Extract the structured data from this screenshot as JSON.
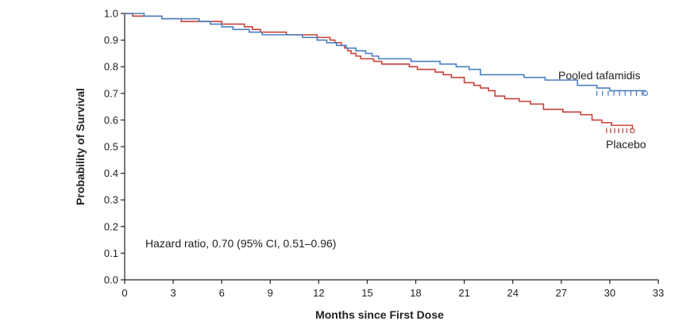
{
  "chart_data": {
    "type": "line",
    "step": true,
    "xlabel": "Months since First Dose",
    "ylabel": "Probability of Survival",
    "xlim": [
      0,
      33
    ],
    "ylim": [
      0.0,
      1.0
    ],
    "x_ticks": [
      "0",
      "3",
      "6",
      "9",
      "12",
      "15",
      "18",
      "21",
      "24",
      "27",
      "30",
      "33"
    ],
    "y_ticks": [
      "0.0",
      "0.1",
      "0.2",
      "0.3",
      "0.4",
      "0.5",
      "0.6",
      "0.7",
      "0.8",
      "0.9",
      "1.0"
    ],
    "grid": false,
    "annotation": "Hazard ratio, 0.70 (95% CI, 0.51–0.96)",
    "series": [
      {
        "name": "Pooled tafamidis",
        "color": "#4a7fc1",
        "x": [
          0,
          1.2,
          2.3,
          4.6,
          5.3,
          6.0,
          6.7,
          7.7,
          8.5,
          9.5,
          11.0,
          11.9,
          12.5,
          13.1,
          13.7,
          14.3,
          14.9,
          15.3,
          15.7,
          17.7,
          19.5,
          20.5,
          21.3,
          22.0,
          24.7,
          26.0,
          28.0,
          29.2,
          30.0,
          32.2
        ],
        "y": [
          1.0,
          0.99,
          0.98,
          0.97,
          0.96,
          0.95,
          0.94,
          0.93,
          0.92,
          0.92,
          0.91,
          0.9,
          0.89,
          0.88,
          0.87,
          0.86,
          0.85,
          0.84,
          0.83,
          0.82,
          0.81,
          0.8,
          0.79,
          0.77,
          0.76,
          0.75,
          0.73,
          0.72,
          0.71,
          0.7
        ]
      },
      {
        "name": "Placebo",
        "color": "#c8413a",
        "x": [
          0,
          0.5,
          2.3,
          3.5,
          5.4,
          6.0,
          7.4,
          7.9,
          8.4,
          10.0,
          11.9,
          12.7,
          13.0,
          13.4,
          13.6,
          13.8,
          14.0,
          14.3,
          14.6,
          15.0,
          15.4,
          15.9,
          16.8,
          17.6,
          18.1,
          19.2,
          19.7,
          20.2,
          21.0,
          21.6,
          22.0,
          22.5,
          22.9,
          23.5,
          24.4,
          25.1,
          25.9,
          27.1,
          28.2,
          28.9,
          29.5,
          30.1,
          31.4
        ],
        "y": [
          1.0,
          0.99,
          0.98,
          0.97,
          0.97,
          0.96,
          0.95,
          0.94,
          0.93,
          0.92,
          0.91,
          0.9,
          0.89,
          0.88,
          0.87,
          0.86,
          0.85,
          0.84,
          0.83,
          0.83,
          0.82,
          0.81,
          0.81,
          0.8,
          0.79,
          0.78,
          0.77,
          0.76,
          0.74,
          0.73,
          0.72,
          0.71,
          0.69,
          0.68,
          0.67,
          0.66,
          0.64,
          0.63,
          0.62,
          0.6,
          0.59,
          0.58,
          0.56
        ]
      }
    ]
  }
}
